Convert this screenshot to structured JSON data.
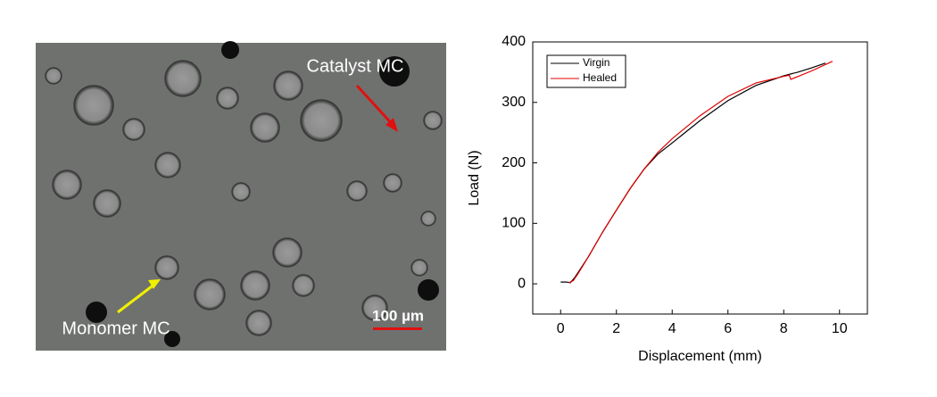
{
  "image": {
    "labels": [
      "Catalyst MC",
      "Monomer MC"
    ],
    "scale_bar": "100 µm"
  },
  "chart_data": {
    "type": "line",
    "xlabel": "Displacement (mm)",
    "ylabel": "Load (N)",
    "xlim": [
      -1,
      11
    ],
    "xticks": [
      0,
      2,
      4,
      6,
      8,
      10
    ],
    "ylim": [
      -50,
      400
    ],
    "yticks": [
      0,
      100,
      200,
      300,
      400
    ],
    "legend": "upper left",
    "series": [
      {
        "name": "Virgin",
        "color": "#000000",
        "x": [
          0,
          0.2,
          0.35,
          0.5,
          1,
          1.5,
          2,
          2.5,
          3,
          3.5,
          4,
          5,
          6,
          7,
          8,
          8.5,
          9,
          9.5
        ],
        "values": [
          3,
          3,
          2,
          10,
          45,
          85,
          122,
          158,
          190,
          215,
          233,
          270,
          303,
          328,
          344,
          350,
          357,
          365
        ]
      },
      {
        "name": "Healed",
        "color": "#e00000",
        "x": [
          0.3,
          0.45,
          0.6,
          1,
          1.5,
          2,
          2.5,
          3,
          3.5,
          4,
          5,
          6,
          7,
          8,
          8.2,
          8.25,
          9,
          9.75
        ],
        "values": [
          2,
          5,
          15,
          45,
          85,
          122,
          158,
          190,
          218,
          240,
          278,
          310,
          332,
          343,
          345,
          338,
          352,
          368
        ]
      }
    ]
  }
}
